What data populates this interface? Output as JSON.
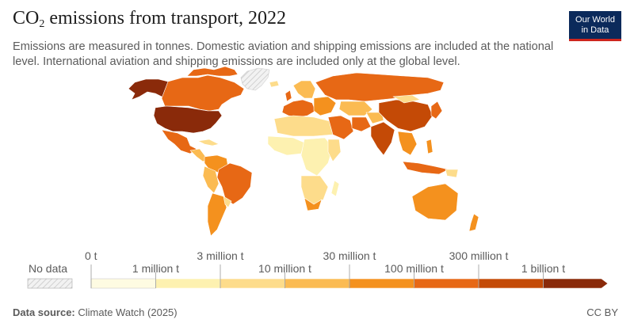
{
  "title": {
    "main": "CO",
    "subscript": "2",
    "rest": " emissions from transport, 2022"
  },
  "subtitle": "Emissions are measured in tonnes. Domestic aviation and shipping emissions are included at the national level. International aviation and shipping emissions are included only at the global level.",
  "logo": {
    "line1": "Our World",
    "line2": "in Data"
  },
  "legend": {
    "no_data_label": "No data",
    "upper_ticks": [
      "0 t",
      "3 million t",
      "30 million t",
      "300 million t"
    ],
    "lower_ticks": [
      "1 million t",
      "10 million t",
      "100 million t",
      "1 billion t"
    ],
    "colors": [
      "#fefbe2",
      "#fdf1b0",
      "#fddc8b",
      "#fbbb52",
      "#f4911e",
      "#e76815",
      "#c44a06",
      "#8a2a0a"
    ],
    "no_data_color": "#eeeeee"
  },
  "footer": {
    "source_label": "Data source:",
    "source_value": "Climate Watch (2025)",
    "license": "CC BY"
  }
}
